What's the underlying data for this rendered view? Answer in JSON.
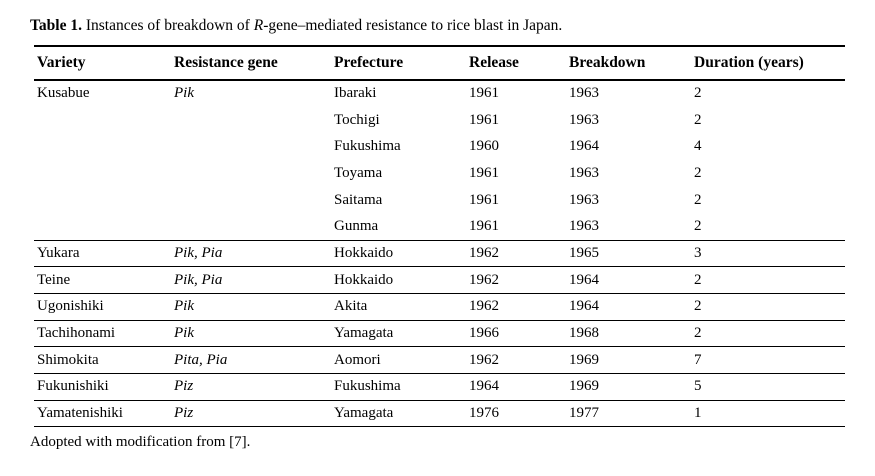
{
  "caption": {
    "bold": "Table 1.",
    "pre_italic": " Instances of breakdown of ",
    "italic": "R",
    "post_italic": "-gene–mediated resistance to rice blast in Japan."
  },
  "table": {
    "columns": [
      "Variety",
      "Resistance gene",
      "Prefecture",
      "Release",
      "Breakdown",
      "Duration (years)"
    ],
    "rows": [
      {
        "variety": "Kusabue",
        "gene": "Pik",
        "prefecture": "Ibaraki",
        "release": "1961",
        "breakdown": "1963",
        "duration": "2",
        "rule_above": false
      },
      {
        "variety": "",
        "gene": "",
        "prefecture": "Tochigi",
        "release": "1961",
        "breakdown": "1963",
        "duration": "2",
        "rule_above": false
      },
      {
        "variety": "",
        "gene": "",
        "prefecture": "Fukushima",
        "release": "1960",
        "breakdown": "1964",
        "duration": "4",
        "rule_above": false
      },
      {
        "variety": "",
        "gene": "",
        "prefecture": "Toyama",
        "release": "1961",
        "breakdown": "1963",
        "duration": "2",
        "rule_above": false
      },
      {
        "variety": "",
        "gene": "",
        "prefecture": "Saitama",
        "release": "1961",
        "breakdown": "1963",
        "duration": "2",
        "rule_above": false
      },
      {
        "variety": "",
        "gene": "",
        "prefecture": "Gunma",
        "release": "1961",
        "breakdown": "1963",
        "duration": "2",
        "rule_above": false
      },
      {
        "variety": "Yukara",
        "gene": "Pik, Pia",
        "prefecture": "Hokkaido",
        "release": "1962",
        "breakdown": "1965",
        "duration": "3",
        "rule_above": true
      },
      {
        "variety": "Teine",
        "gene": "Pik, Pia",
        "prefecture": "Hokkaido",
        "release": "1962",
        "breakdown": "1964",
        "duration": "2",
        "rule_above": true
      },
      {
        "variety": "Ugonishiki",
        "gene": "Pik",
        "prefecture": "Akita",
        "release": "1962",
        "breakdown": "1964",
        "duration": "2",
        "rule_above": true
      },
      {
        "variety": "Tachihonami",
        "gene": "Pik",
        "prefecture": "Yamagata",
        "release": "1966",
        "breakdown": "1968",
        "duration": "2",
        "rule_above": true
      },
      {
        "variety": "Shimokita",
        "gene": "Pita, Pia",
        "prefecture": "Aomori",
        "release": "1962",
        "breakdown": "1969",
        "duration": "7",
        "rule_above": true
      },
      {
        "variety": "Fukunishiki",
        "gene": "Piz",
        "prefecture": "Fukushima",
        "release": "1964",
        "breakdown": "1969",
        "duration": "5",
        "rule_above": true
      },
      {
        "variety": "Yamatenishiki",
        "gene": "Piz",
        "prefecture": "Yamagata",
        "release": "1976",
        "breakdown": "1977",
        "duration": "1",
        "rule_above": true
      }
    ]
  },
  "footnote": "Adopted with modification from [7]."
}
